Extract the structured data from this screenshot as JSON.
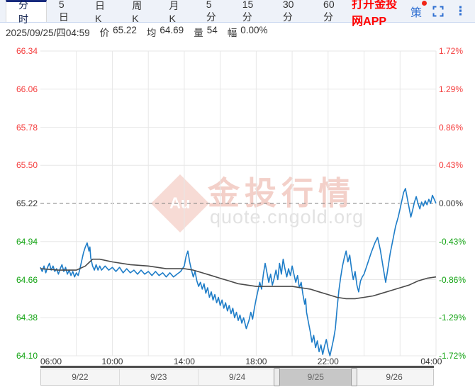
{
  "tab_bar": {
    "tabs": [
      {
        "label": "分时",
        "active": true
      },
      {
        "label": "5日",
        "active": false
      },
      {
        "label": "日K",
        "active": false
      },
      {
        "label": "周K",
        "active": false
      },
      {
        "label": "月K",
        "active": false
      },
      {
        "label": "5分",
        "active": false
      },
      {
        "label": "15分",
        "active": false
      },
      {
        "label": "30分",
        "active": false
      },
      {
        "label": "60分",
        "active": false
      }
    ],
    "app_link_label": "打开金投网APP",
    "strategy_label": "策",
    "has_notification_dot": true,
    "more_glyph": "⋮"
  },
  "info_bar": {
    "datetime": "2025/09/25/四04:59",
    "fields": [
      {
        "label": "价",
        "value": "65.22"
      },
      {
        "label": "均",
        "value": "64.69"
      },
      {
        "label": "量",
        "value": "54"
      },
      {
        "label": "幅",
        "value": "0.00%"
      }
    ]
  },
  "watermark": {
    "logo_text": "Au",
    "title": "金投行情",
    "url": "quote.cngold.org"
  },
  "colors": {
    "up": "#f43b3b",
    "down": "#12a312",
    "neutral": "#333333",
    "price_line": "#1e7dc8",
    "avg_line": "#4a4a4a",
    "gridline": "#e7e7e7",
    "base_dash": "#808080",
    "accent_blue": "#2f6fd1",
    "app_link_red": "#ff0000",
    "active_tab_border": "#172a7d",
    "spark": "#9a9a9a"
  },
  "chart_data": {
    "type": "line",
    "title": "分时 (intraday price vs average)",
    "x_axis": {
      "labels": [
        "06:00",
        "10:00",
        "14:00",
        "18:00",
        "22:00",
        "04:00"
      ],
      "label_hours": [
        6,
        10,
        14,
        18,
        22,
        28
      ],
      "range_hours": [
        6,
        28
      ],
      "gridline_every_hours": 2
    },
    "y_axis_left": {
      "labels": [
        "66.34",
        "66.06",
        "65.78",
        "65.50",
        "65.22",
        "64.94",
        "64.66",
        "64.38",
        "64.10"
      ],
      "range": [
        64.1,
        66.34
      ]
    },
    "y_axis_right": {
      "labels": [
        "1.72%",
        "1.29%",
        "0.86%",
        "0.43%",
        "0.00%",
        "-0.43%",
        "-0.86%",
        "-1.29%",
        "-1.72%"
      ]
    },
    "base_value": 65.22,
    "series": [
      {
        "name": "price",
        "points": [
          [
            6.0,
            64.75
          ],
          [
            6.1,
            64.72
          ],
          [
            6.2,
            64.76
          ],
          [
            6.3,
            64.71
          ],
          [
            6.4,
            64.75
          ],
          [
            6.5,
            64.78
          ],
          [
            6.6,
            64.73
          ],
          [
            6.7,
            64.76
          ],
          [
            6.8,
            64.72
          ],
          [
            6.9,
            64.74
          ],
          [
            7.0,
            64.7
          ],
          [
            7.1,
            64.74
          ],
          [
            7.2,
            64.77
          ],
          [
            7.3,
            64.72
          ],
          [
            7.4,
            64.75
          ],
          [
            7.5,
            64.7
          ],
          [
            7.6,
            64.73
          ],
          [
            7.7,
            64.69
          ],
          [
            7.8,
            64.72
          ],
          [
            7.9,
            64.68
          ],
          [
            8.0,
            64.71
          ],
          [
            8.1,
            64.69
          ],
          [
            8.2,
            64.74
          ],
          [
            8.3,
            64.8
          ],
          [
            8.4,
            64.86
          ],
          [
            8.5,
            64.9
          ],
          [
            8.6,
            64.93
          ],
          [
            8.7,
            64.87
          ],
          [
            8.75,
            64.9
          ],
          [
            8.8,
            64.82
          ],
          [
            8.9,
            64.76
          ],
          [
            9.0,
            64.73
          ],
          [
            9.1,
            64.77
          ],
          [
            9.2,
            64.73
          ],
          [
            9.3,
            64.76
          ],
          [
            9.4,
            64.73
          ],
          [
            9.6,
            64.76
          ],
          [
            9.8,
            64.73
          ],
          [
            10.0,
            64.75
          ],
          [
            10.2,
            64.72
          ],
          [
            10.4,
            64.75
          ],
          [
            10.6,
            64.71
          ],
          [
            10.8,
            64.74
          ],
          [
            11.0,
            64.71
          ],
          [
            11.2,
            64.73
          ],
          [
            11.4,
            64.7
          ],
          [
            11.6,
            64.73
          ],
          [
            11.8,
            64.7
          ],
          [
            12.0,
            64.72
          ],
          [
            12.2,
            64.69
          ],
          [
            12.4,
            64.72
          ],
          [
            12.6,
            64.69
          ],
          [
            12.8,
            64.71
          ],
          [
            13.0,
            64.68
          ],
          [
            13.2,
            64.71
          ],
          [
            13.4,
            64.68
          ],
          [
            13.6,
            64.7
          ],
          [
            13.8,
            64.72
          ],
          [
            14.0,
            64.76
          ],
          [
            14.1,
            64.83
          ],
          [
            14.2,
            64.87
          ],
          [
            14.3,
            64.79
          ],
          [
            14.4,
            64.73
          ],
          [
            14.5,
            64.68
          ],
          [
            14.6,
            64.72
          ],
          [
            14.7,
            64.65
          ],
          [
            14.8,
            64.61
          ],
          [
            14.9,
            64.64
          ],
          [
            15.0,
            64.59
          ],
          [
            15.1,
            64.63
          ],
          [
            15.2,
            64.56
          ],
          [
            15.3,
            64.6
          ],
          [
            15.4,
            64.53
          ],
          [
            15.5,
            64.57
          ],
          [
            15.6,
            64.51
          ],
          [
            15.7,
            64.55
          ],
          [
            15.8,
            64.49
          ],
          [
            15.9,
            64.53
          ],
          [
            16.0,
            64.47
          ],
          [
            16.1,
            64.51
          ],
          [
            16.2,
            64.45
          ],
          [
            16.3,
            64.49
          ],
          [
            16.4,
            64.43
          ],
          [
            16.5,
            64.47
          ],
          [
            16.6,
            64.41
          ],
          [
            16.7,
            64.45
          ],
          [
            16.8,
            64.38
          ],
          [
            16.9,
            64.42
          ],
          [
            17.0,
            64.36
          ],
          [
            17.1,
            64.4
          ],
          [
            17.2,
            64.34
          ],
          [
            17.3,
            64.38
          ],
          [
            17.45,
            64.3
          ],
          [
            17.6,
            64.36
          ],
          [
            17.7,
            64.42
          ],
          [
            17.8,
            64.37
          ],
          [
            17.9,
            64.45
          ],
          [
            18.0,
            64.52
          ],
          [
            18.1,
            64.58
          ],
          [
            18.2,
            64.64
          ],
          [
            18.3,
            64.59
          ],
          [
            18.4,
            64.7
          ],
          [
            18.5,
            64.78
          ],
          [
            18.6,
            64.71
          ],
          [
            18.7,
            64.64
          ],
          [
            18.8,
            64.7
          ],
          [
            18.9,
            64.62
          ],
          [
            19.0,
            64.67
          ],
          [
            19.1,
            64.73
          ],
          [
            19.2,
            64.66
          ],
          [
            19.3,
            64.78
          ],
          [
            19.4,
            64.7
          ],
          [
            19.5,
            64.81
          ],
          [
            19.6,
            64.74
          ],
          [
            19.7,
            64.68
          ],
          [
            19.8,
            64.74
          ],
          [
            19.9,
            64.69
          ],
          [
            20.0,
            64.76
          ],
          [
            20.1,
            64.7
          ],
          [
            20.2,
            64.64
          ],
          [
            20.3,
            64.69
          ],
          [
            20.4,
            64.6
          ],
          [
            20.5,
            64.64
          ],
          [
            20.6,
            64.55
          ],
          [
            20.7,
            64.48
          ],
          [
            20.75,
            64.52
          ],
          [
            20.8,
            64.42
          ],
          [
            20.9,
            64.35
          ],
          [
            21.0,
            64.28
          ],
          [
            21.1,
            64.2
          ],
          [
            21.2,
            64.25
          ],
          [
            21.3,
            64.16
          ],
          [
            21.4,
            64.21
          ],
          [
            21.5,
            64.13
          ],
          [
            21.6,
            64.18
          ],
          [
            21.7,
            64.11
          ],
          [
            21.8,
            64.17
          ],
          [
            21.9,
            64.22
          ],
          [
            22.0,
            64.15
          ],
          [
            22.1,
            64.1
          ],
          [
            22.2,
            64.16
          ],
          [
            22.3,
            64.22
          ],
          [
            22.4,
            64.3
          ],
          [
            22.5,
            64.45
          ],
          [
            22.6,
            64.58
          ],
          [
            22.7,
            64.68
          ],
          [
            22.8,
            64.76
          ],
          [
            22.9,
            64.82
          ],
          [
            23.0,
            64.87
          ],
          [
            23.1,
            64.79
          ],
          [
            23.2,
            64.84
          ],
          [
            23.3,
            64.74
          ],
          [
            23.4,
            64.66
          ],
          [
            23.5,
            64.72
          ],
          [
            23.6,
            64.62
          ],
          [
            23.7,
            64.57
          ],
          [
            23.8,
            64.65
          ],
          [
            23.9,
            64.68
          ],
          [
            24.0,
            64.7
          ],
          [
            24.2,
            64.78
          ],
          [
            24.4,
            64.86
          ],
          [
            24.6,
            64.93
          ],
          [
            24.75,
            64.97
          ],
          [
            24.9,
            64.88
          ],
          [
            25.0,
            64.8
          ],
          [
            25.1,
            64.72
          ],
          [
            25.2,
            64.64
          ],
          [
            25.3,
            64.72
          ],
          [
            25.45,
            64.85
          ],
          [
            25.6,
            64.95
          ],
          [
            25.75,
            65.05
          ],
          [
            25.9,
            65.12
          ],
          [
            26.0,
            65.18
          ],
          [
            26.1,
            65.24
          ],
          [
            26.2,
            65.3
          ],
          [
            26.3,
            65.33
          ],
          [
            26.4,
            65.26
          ],
          [
            26.5,
            65.19
          ],
          [
            26.6,
            65.12
          ],
          [
            26.7,
            65.17
          ],
          [
            26.8,
            65.23
          ],
          [
            26.9,
            65.27
          ],
          [
            27.0,
            65.22
          ],
          [
            27.1,
            65.18
          ],
          [
            27.2,
            65.23
          ],
          [
            27.3,
            65.2
          ],
          [
            27.4,
            65.24
          ],
          [
            27.5,
            65.21
          ],
          [
            27.6,
            65.25
          ],
          [
            27.7,
            65.22
          ],
          [
            27.8,
            65.28
          ],
          [
            27.9,
            65.25
          ],
          [
            28.0,
            65.22
          ]
        ]
      },
      {
        "name": "average",
        "points": [
          [
            6.0,
            64.74
          ],
          [
            7.0,
            64.73
          ],
          [
            8.0,
            64.73
          ],
          [
            8.5,
            64.76
          ],
          [
            8.9,
            64.81
          ],
          [
            9.3,
            64.81
          ],
          [
            10.0,
            64.79
          ],
          [
            11.0,
            64.77
          ],
          [
            12.0,
            64.76
          ],
          [
            13.0,
            64.74
          ],
          [
            14.0,
            64.74
          ],
          [
            14.5,
            64.73
          ],
          [
            15.0,
            64.71
          ],
          [
            15.5,
            64.69
          ],
          [
            16.0,
            64.67
          ],
          [
            16.5,
            64.65
          ],
          [
            17.0,
            64.63
          ],
          [
            17.5,
            64.62
          ],
          [
            18.0,
            64.61
          ],
          [
            19.0,
            64.61
          ],
          [
            20.0,
            64.61
          ],
          [
            20.5,
            64.6
          ],
          [
            21.0,
            64.59
          ],
          [
            21.5,
            64.57
          ],
          [
            22.0,
            64.55
          ],
          [
            22.5,
            64.53
          ],
          [
            23.0,
            64.52
          ],
          [
            23.5,
            64.52
          ],
          [
            24.0,
            64.53
          ],
          [
            24.5,
            64.54
          ],
          [
            25.0,
            64.56
          ],
          [
            25.5,
            64.58
          ],
          [
            26.0,
            64.6
          ],
          [
            26.5,
            64.62
          ],
          [
            27.0,
            64.65
          ],
          [
            27.5,
            64.67
          ],
          [
            28.0,
            64.68
          ]
        ]
      }
    ],
    "navigator": {
      "dates": [
        "9/22",
        "9/23",
        "9/24",
        "9/25",
        "9/26"
      ],
      "selected_index": 3,
      "spark": [
        [
          0,
          0.35
        ],
        [
          0.04,
          0.32
        ],
        [
          0.08,
          0.3
        ],
        [
          0.12,
          0.28
        ],
        [
          0.16,
          0.22
        ],
        [
          0.2,
          0.18
        ],
        [
          0.24,
          0.2
        ],
        [
          0.28,
          0.16
        ],
        [
          0.32,
          0.22
        ],
        [
          0.36,
          0.28
        ],
        [
          0.4,
          0.38
        ],
        [
          0.44,
          0.46
        ],
        [
          0.46,
          0.55
        ],
        [
          0.48,
          0.5
        ],
        [
          0.52,
          0.55
        ],
        [
          0.54,
          0.62
        ],
        [
          0.56,
          0.58
        ],
        [
          0.6,
          0.66
        ],
        [
          0.62,
          0.6
        ],
        [
          0.64,
          0.68
        ],
        [
          0.68,
          0.72
        ],
        [
          0.7,
          0.66
        ],
        [
          0.72,
          0.7
        ],
        [
          0.74,
          0.64
        ],
        [
          0.76,
          0.68
        ],
        [
          0.78,
          0.6
        ],
        [
          0.8,
          0.66
        ],
        [
          0.82,
          0.72
        ],
        [
          0.84,
          0.78
        ],
        [
          0.86,
          0.74
        ],
        [
          0.88,
          0.8
        ],
        [
          0.9,
          0.84
        ],
        [
          0.92,
          0.82
        ],
        [
          0.93,
          0.85
        ]
      ]
    }
  }
}
